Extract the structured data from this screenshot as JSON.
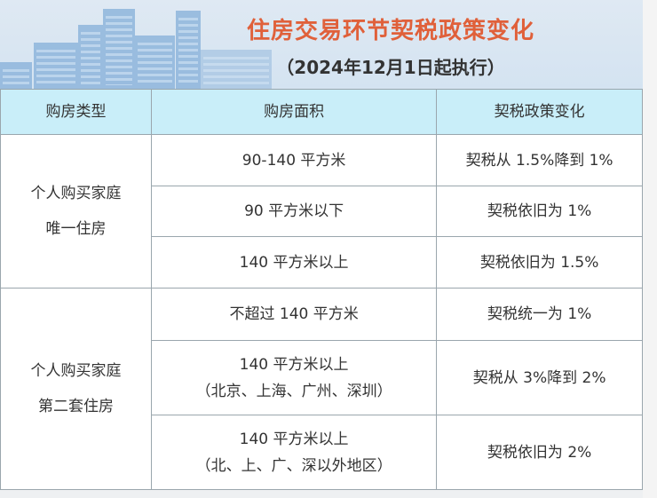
{
  "header": {
    "title": "住房交易环节契税政策变化",
    "subtitle": "（2024年12月1日起执行）"
  },
  "colors": {
    "title": "#e0603a",
    "header_row": "#c9eef9",
    "banner": "#d9e6f2"
  },
  "table": {
    "columns": [
      "购房类型",
      "购房面积",
      "契税政策变化"
    ],
    "groups": [
      {
        "type_line1": "个人购买家庭",
        "type_line2": "唯一住房",
        "rows": [
          {
            "area": "90-140 平方米",
            "area_note": "",
            "policy": "契税从 1.5%降到 1%"
          },
          {
            "area": "90 平方米以下",
            "area_note": "",
            "policy": "契税依旧为 1%"
          },
          {
            "area": "140 平方米以上",
            "area_note": "",
            "policy": "契税依旧为 1.5%"
          }
        ]
      },
      {
        "type_line1": "个人购买家庭",
        "type_line2": "第二套住房",
        "rows": [
          {
            "area": "不超过 140 平方米",
            "area_note": "",
            "policy": "契税统一为 1%"
          },
          {
            "area": "140 平方米以上",
            "area_note": "（北京、上海、广州、深圳）",
            "policy": "契税从 3%降到 2%"
          },
          {
            "area": "140 平方米以上",
            "area_note": "（北、上、广、深以外地区）",
            "policy": "契税依旧为 2%"
          }
        ]
      }
    ]
  }
}
